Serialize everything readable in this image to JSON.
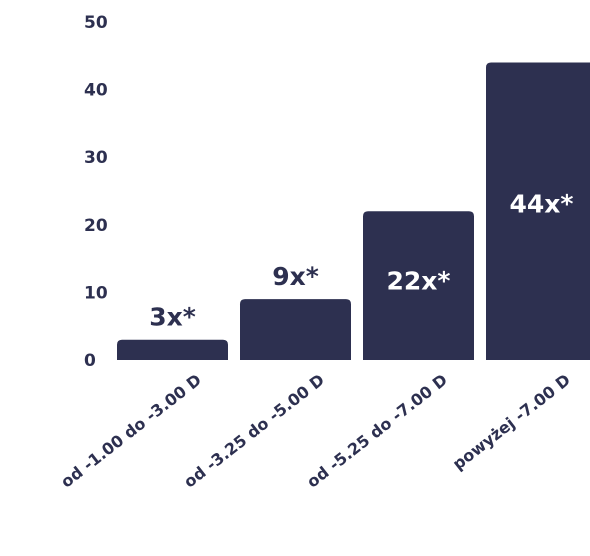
{
  "chart_data": {
    "type": "bar",
    "categories": [
      "od -1.00 do -3.00 D",
      "od -3.25 do -5.00 D",
      "od -5.25 do -7.00 D",
      "powyżej -7.00 D"
    ],
    "values": [
      3,
      9,
      22,
      44
    ],
    "data_labels": [
      "3x*",
      "9x*",
      "22x*",
      "44x*"
    ],
    "y_ticks": [
      "0",
      "10",
      "20",
      "30",
      "40",
      "50"
    ],
    "ylim": [
      0,
      50
    ],
    "grid": false,
    "bar_color": "#2d3050",
    "label_color_outside": "#2d3050",
    "label_color_inside": "#ffffff"
  }
}
